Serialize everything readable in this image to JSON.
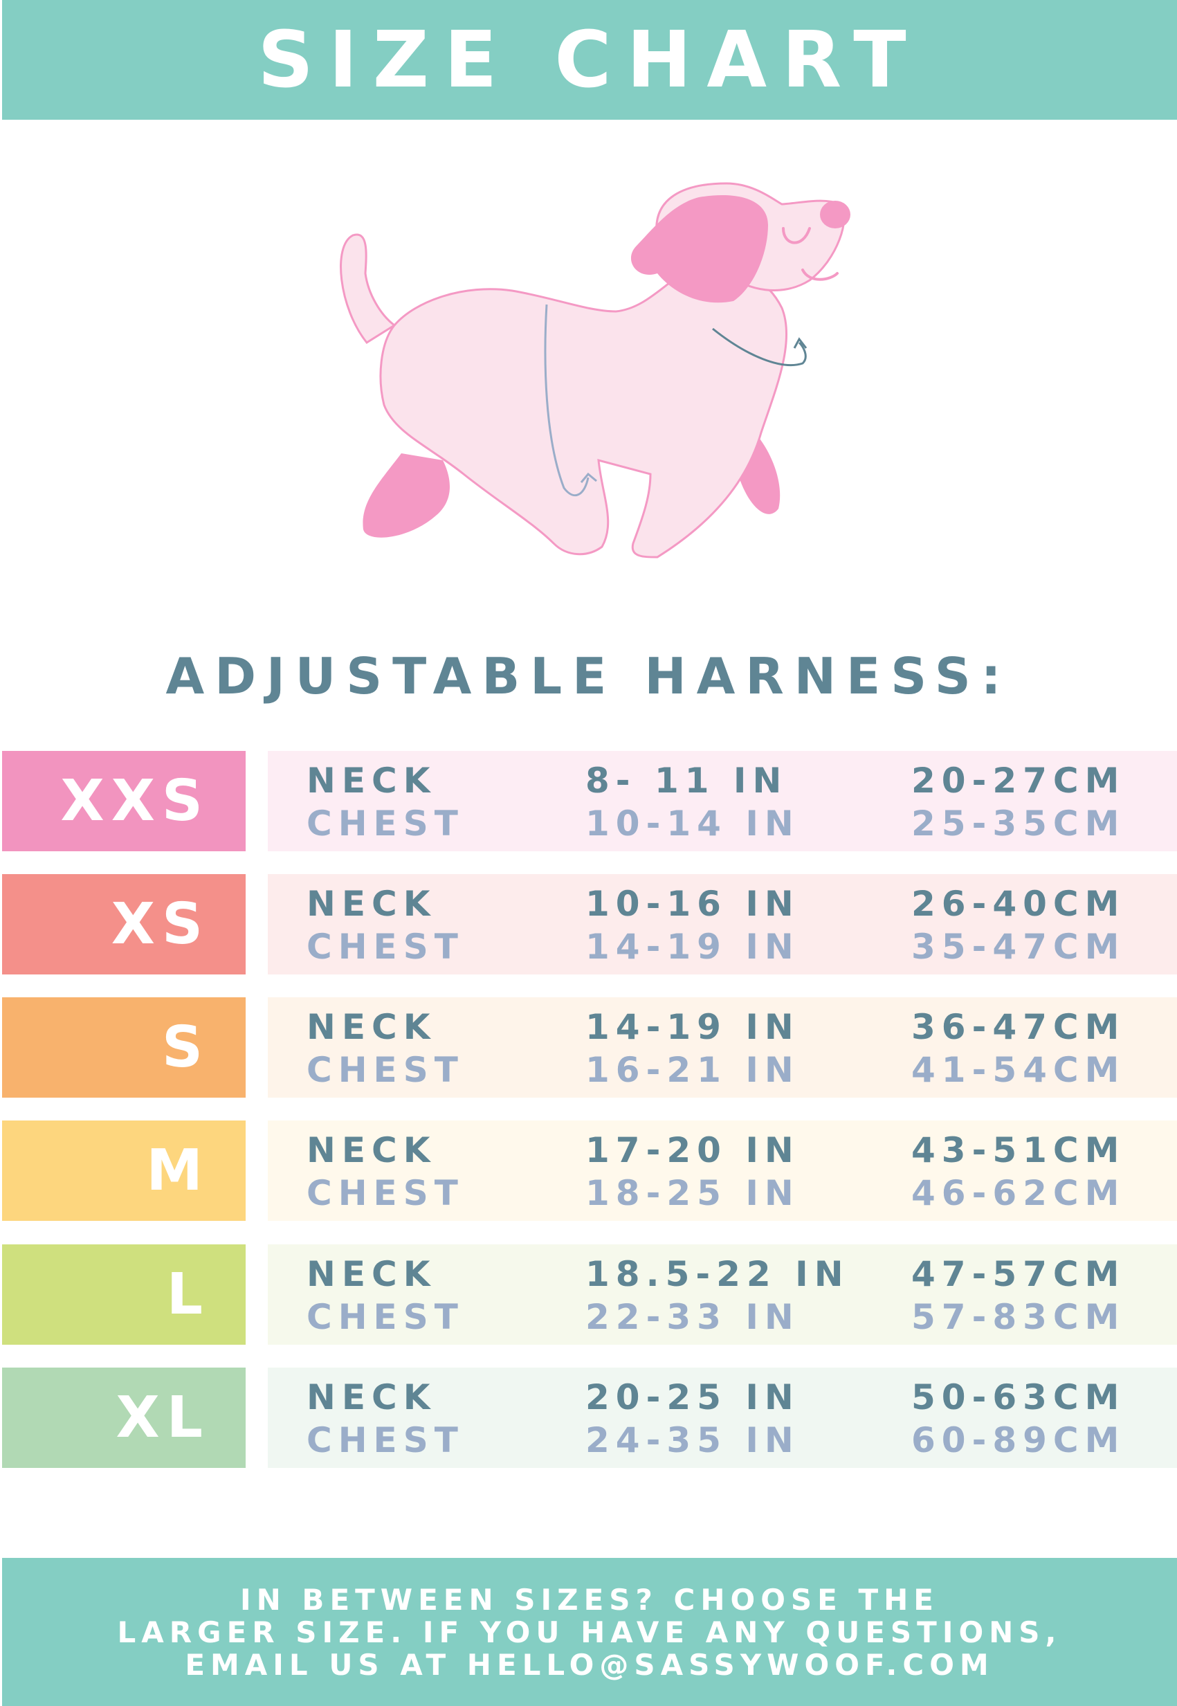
{
  "header": {
    "title": "SIZE CHART"
  },
  "subtitle": "ADJUSTABLE HARNESS:",
  "colors": {
    "teal": "#84cec3",
    "dark_text": "#5f8594",
    "light_text": "#9aadc9",
    "dog_pink": "#f499c4"
  },
  "sizes": [
    {
      "size": "XXS",
      "color": "#f294bf",
      "bg": "#fdedf4",
      "neck_label": "NECK",
      "neck_in": "8- 11 IN",
      "neck_cm": "20-27CM",
      "chest_label": "CHEST",
      "chest_in": "10-14 IN",
      "chest_cm": "25-35CM"
    },
    {
      "size": "XS",
      "color": "#f4908a",
      "bg": "#fdecec",
      "neck_label": "NECK",
      "neck_in": "10-16 IN",
      "neck_cm": "26-40CM",
      "chest_label": "CHEST",
      "chest_in": "14-19 IN",
      "chest_cm": "35-47CM"
    },
    {
      "size": "S",
      "color": "#f8b26d",
      "bg": "#fef4ea",
      "neck_label": "NECK",
      "neck_in": "14-19 IN",
      "neck_cm": "36-47CM",
      "chest_label": "CHEST",
      "chest_in": "16-21 IN",
      "chest_cm": "41-54CM"
    },
    {
      "size": "M",
      "color": "#fdd67e",
      "bg": "#fff9ec",
      "neck_label": "NECK",
      "neck_in": "17-20 IN",
      "neck_cm": "43-51CM",
      "chest_label": "CHEST",
      "chest_in": "18-25 IN",
      "chest_cm": "46-62CM"
    },
    {
      "size": "L",
      "color": "#cfe07e",
      "bg": "#f6f9ec",
      "neck_label": "NECK",
      "neck_in": "18.5-22 IN",
      "neck_cm": "47-57CM",
      "chest_label": "CHEST",
      "chest_in": "22-33 IN",
      "chest_cm": "57-83CM"
    },
    {
      "size": "XL",
      "color": "#b1d9b4",
      "bg": "#f0f7f2",
      "neck_label": "NECK",
      "neck_in": "20-25 IN",
      "neck_cm": "50-63CM",
      "chest_label": "CHEST",
      "chest_in": "24-35 IN",
      "chest_cm": "60-89CM"
    }
  ],
  "footer": {
    "lines": [
      "IN BETWEEN SIZES? CHOOSE THE",
      "LARGER SIZE. IF YOU HAVE ANY QUESTIONS,",
      "EMAIL US AT HELLO@SASSYWOOF.COM"
    ]
  }
}
